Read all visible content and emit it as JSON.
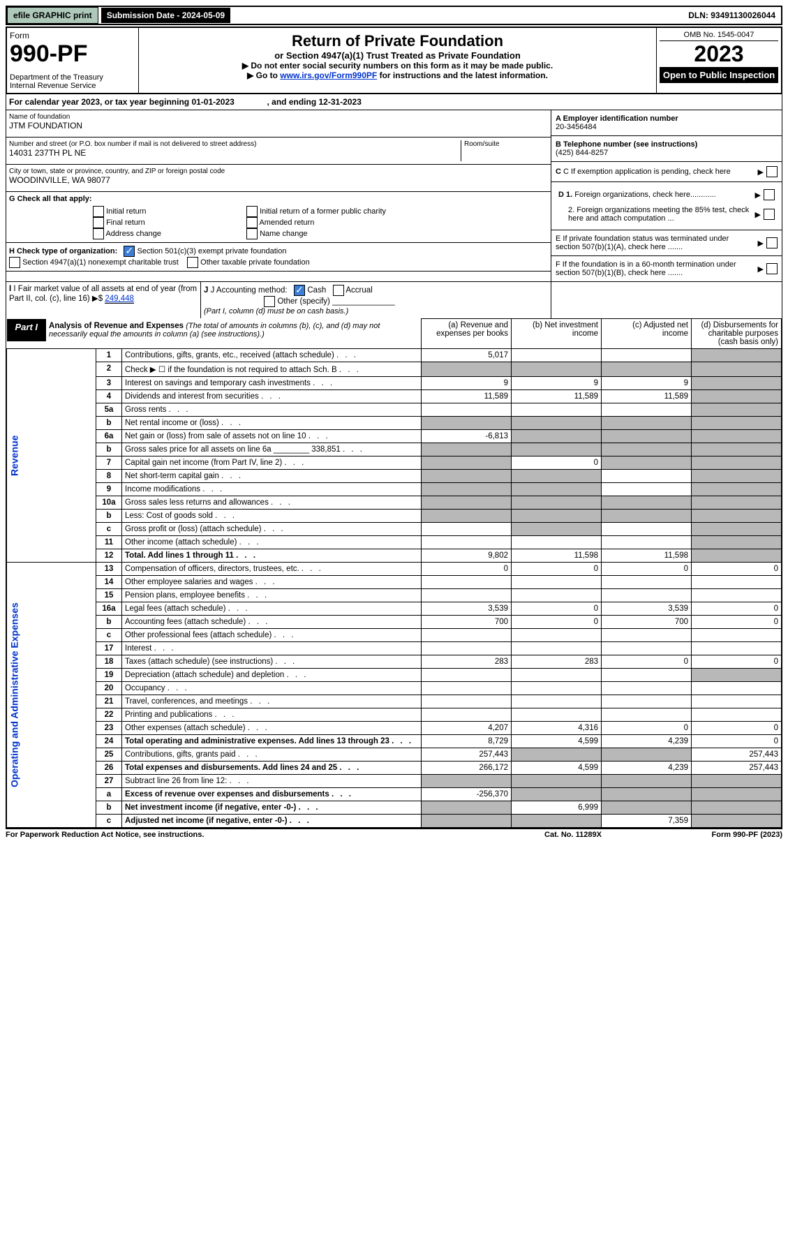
{
  "top": {
    "efile_btn": "efile GRAPHIC print",
    "sub_date_label": "Submission Date - 2024-05-09",
    "dln": "DLN: 93491130026044"
  },
  "header": {
    "form_label": "Form",
    "form_num": "990-PF",
    "dept": "Department of the Treasury\nInternal Revenue Service",
    "title": "Return of Private Foundation",
    "subtitle": "or Section 4947(a)(1) Trust Treated as Private Foundation",
    "note1": "▶ Do not enter social security numbers on this form as it may be made public.",
    "note2_prefix": "▶ Go to ",
    "note2_link": "www.irs.gov/Form990PF",
    "note2_suffix": " for instructions and the latest information.",
    "omb": "OMB No. 1545-0047",
    "year": "2023",
    "open": "Open to Public Inspection"
  },
  "cal_year": "For calendar year 2023, or tax year beginning 01-01-2023              , and ending 12-31-2023",
  "ident": {
    "name_lbl": "Name of foundation",
    "name_val": "JTM FOUNDATION",
    "addr_lbl": "Number and street (or P.O. box number if mail is not delivered to street address)",
    "addr_val": "14031 237TH PL NE",
    "room_lbl": "Room/suite",
    "city_lbl": "City or town, state or province, country, and ZIP or foreign postal code",
    "city_val": "WOODINVILLE, WA  98077",
    "a_lbl": "A Employer identification number",
    "a_val": "20-3456484",
    "b_lbl": "B Telephone number (see instructions)",
    "b_val": "(425) 844-8257",
    "c_lbl": "C If exemption application is pending, check here",
    "d1_lbl": "D 1. Foreign organizations, check here............",
    "d2_lbl": "2. Foreign organizations meeting the 85% test, check here and attach computation ...",
    "e_lbl": "E  If private foundation status was terminated under section 507(b)(1)(A), check here .......",
    "f_lbl": "F  If the foundation is in a 60-month termination under section 507(b)(1)(B), check here .......",
    "g_lbl": "G Check all that apply:",
    "g_opts": [
      "Initial return",
      "Final return",
      "Address change",
      "Initial return of a former public charity",
      "Amended return",
      "Name change"
    ],
    "h_lbl": "H Check type of organization:",
    "h_opt1": "Section 501(c)(3) exempt private foundation",
    "h_opt2": "Section 4947(a)(1) nonexempt charitable trust",
    "h_opt3": "Other taxable private foundation",
    "i_lbl": "I Fair market value of all assets at end of year (from Part II, col. (c), line 16)",
    "i_val": "249,448",
    "j_lbl": "J Accounting method:",
    "j_cash": "Cash",
    "j_accrual": "Accrual",
    "j_other": "Other (specify)",
    "j_note": "(Part I, column (d) must be on cash basis.)"
  },
  "part1": {
    "tab": "Part I",
    "title": "Analysis of Revenue and Expenses",
    "title_note": "(The total of amounts in columns (b), (c), and (d) may not necessarily equal the amounts in column (a) (see instructions).)",
    "col_a": "(a) Revenue and expenses per books",
    "col_b": "(b) Net investment income",
    "col_c": "(c) Adjusted net income",
    "col_d": "(d) Disbursements for charitable purposes (cash basis only)",
    "side_rev": "Revenue",
    "side_exp": "Operating and Administrative Expenses"
  },
  "rows": [
    {
      "n": "1",
      "label": "Contributions, gifts, grants, etc., received (attach schedule)",
      "a": "5,017",
      "b": "",
      "c": "",
      "d": "",
      "dgrey": true
    },
    {
      "n": "2",
      "label": "Check ▶ ☐ if the foundation is not required to attach Sch. B",
      "a": "",
      "b": "",
      "c": "",
      "d": "",
      "agrey": true,
      "bgrey": true,
      "cgrey": true,
      "dgrey": true
    },
    {
      "n": "3",
      "label": "Interest on savings and temporary cash investments",
      "a": "9",
      "b": "9",
      "c": "9",
      "d": "",
      "dgrey": true
    },
    {
      "n": "4",
      "label": "Dividends and interest from securities",
      "a": "11,589",
      "b": "11,589",
      "c": "11,589",
      "d": "",
      "dgrey": true
    },
    {
      "n": "5a",
      "label": "Gross rents",
      "a": "",
      "b": "",
      "c": "",
      "d": "",
      "dgrey": true
    },
    {
      "n": "b",
      "label": "Net rental income or (loss)",
      "a": "",
      "b": "",
      "c": "",
      "d": "",
      "agrey": true,
      "bgrey": true,
      "cgrey": true,
      "dgrey": true
    },
    {
      "n": "6a",
      "label": "Net gain or (loss) from sale of assets not on line 10",
      "a": "-6,813",
      "b": "",
      "c": "",
      "d": "",
      "bgrey": true,
      "cgrey": true,
      "dgrey": true
    },
    {
      "n": "b",
      "label": "Gross sales price for all assets on line 6a ________ 338,851",
      "a": "",
      "b": "",
      "c": "",
      "d": "",
      "agrey": true,
      "bgrey": true,
      "cgrey": true,
      "dgrey": true
    },
    {
      "n": "7",
      "label": "Capital gain net income (from Part IV, line 2)",
      "a": "",
      "b": "0",
      "c": "",
      "d": "",
      "agrey": true,
      "cgrey": true,
      "dgrey": true
    },
    {
      "n": "8",
      "label": "Net short-term capital gain",
      "a": "",
      "b": "",
      "c": "",
      "d": "",
      "agrey": true,
      "bgrey": true,
      "dgrey": true
    },
    {
      "n": "9",
      "label": "Income modifications",
      "a": "",
      "b": "",
      "c": "",
      "d": "",
      "agrey": true,
      "bgrey": true,
      "dgrey": true
    },
    {
      "n": "10a",
      "label": "Gross sales less returns and allowances",
      "a": "",
      "b": "",
      "c": "",
      "d": "",
      "agrey": true,
      "bgrey": true,
      "cgrey": true,
      "dgrey": true
    },
    {
      "n": "b",
      "label": "Less: Cost of goods sold",
      "a": "",
      "b": "",
      "c": "",
      "d": "",
      "agrey": true,
      "bgrey": true,
      "cgrey": true,
      "dgrey": true
    },
    {
      "n": "c",
      "label": "Gross profit or (loss) (attach schedule)",
      "a": "",
      "b": "",
      "c": "",
      "d": "",
      "bgrey": true,
      "dgrey": true
    },
    {
      "n": "11",
      "label": "Other income (attach schedule)",
      "a": "",
      "b": "",
      "c": "",
      "d": "",
      "dgrey": true
    },
    {
      "n": "12",
      "label": "Total. Add lines 1 through 11",
      "a": "9,802",
      "b": "11,598",
      "c": "11,598",
      "d": "",
      "bold": true,
      "dgrey": true
    },
    {
      "n": "13",
      "label": "Compensation of officers, directors, trustees, etc.",
      "a": "0",
      "b": "0",
      "c": "0",
      "d": "0"
    },
    {
      "n": "14",
      "label": "Other employee salaries and wages",
      "a": "",
      "b": "",
      "c": "",
      "d": ""
    },
    {
      "n": "15",
      "label": "Pension plans, employee benefits",
      "a": "",
      "b": "",
      "c": "",
      "d": ""
    },
    {
      "n": "16a",
      "label": "Legal fees (attach schedule)",
      "a": "3,539",
      "b": "0",
      "c": "3,539",
      "d": "0"
    },
    {
      "n": "b",
      "label": "Accounting fees (attach schedule)",
      "a": "700",
      "b": "0",
      "c": "700",
      "d": "0"
    },
    {
      "n": "c",
      "label": "Other professional fees (attach schedule)",
      "a": "",
      "b": "",
      "c": "",
      "d": ""
    },
    {
      "n": "17",
      "label": "Interest",
      "a": "",
      "b": "",
      "c": "",
      "d": ""
    },
    {
      "n": "18",
      "label": "Taxes (attach schedule) (see instructions)",
      "a": "283",
      "b": "283",
      "c": "0",
      "d": "0"
    },
    {
      "n": "19",
      "label": "Depreciation (attach schedule) and depletion",
      "a": "",
      "b": "",
      "c": "",
      "d": "",
      "dgrey": true
    },
    {
      "n": "20",
      "label": "Occupancy",
      "a": "",
      "b": "",
      "c": "",
      "d": ""
    },
    {
      "n": "21",
      "label": "Travel, conferences, and meetings",
      "a": "",
      "b": "",
      "c": "",
      "d": ""
    },
    {
      "n": "22",
      "label": "Printing and publications",
      "a": "",
      "b": "",
      "c": "",
      "d": ""
    },
    {
      "n": "23",
      "label": "Other expenses (attach schedule)",
      "a": "4,207",
      "b": "4,316",
      "c": "0",
      "d": "0"
    },
    {
      "n": "24",
      "label": "Total operating and administrative expenses. Add lines 13 through 23",
      "a": "8,729",
      "b": "4,599",
      "c": "4,239",
      "d": "0",
      "bold": true
    },
    {
      "n": "25",
      "label": "Contributions, gifts, grants paid",
      "a": "257,443",
      "b": "",
      "c": "",
      "d": "257,443",
      "bgrey": true,
      "cgrey": true
    },
    {
      "n": "26",
      "label": "Total expenses and disbursements. Add lines 24 and 25",
      "a": "266,172",
      "b": "4,599",
      "c": "4,239",
      "d": "257,443",
      "bold": true
    },
    {
      "n": "27",
      "label": "Subtract line 26 from line 12:",
      "a": "",
      "b": "",
      "c": "",
      "d": "",
      "agrey": true,
      "bgrey": true,
      "cgrey": true,
      "dgrey": true
    },
    {
      "n": "a",
      "label": "Excess of revenue over expenses and disbursements",
      "a": "-256,370",
      "b": "",
      "c": "",
      "d": "",
      "bold": true,
      "bgrey": true,
      "cgrey": true,
      "dgrey": true
    },
    {
      "n": "b",
      "label": "Net investment income (if negative, enter -0-)",
      "a": "",
      "b": "6,999",
      "c": "",
      "d": "",
      "bold": true,
      "agrey": true,
      "cgrey": true,
      "dgrey": true
    },
    {
      "n": "c",
      "label": "Adjusted net income (if negative, enter -0-)",
      "a": "",
      "b": "",
      "c": "7,359",
      "d": "",
      "bold": true,
      "agrey": true,
      "bgrey": true,
      "dgrey": true
    }
  ],
  "footer": {
    "left": "For Paperwork Reduction Act Notice, see instructions.",
    "mid": "Cat. No. 11289X",
    "right": "Form 990-PF (2023)"
  }
}
